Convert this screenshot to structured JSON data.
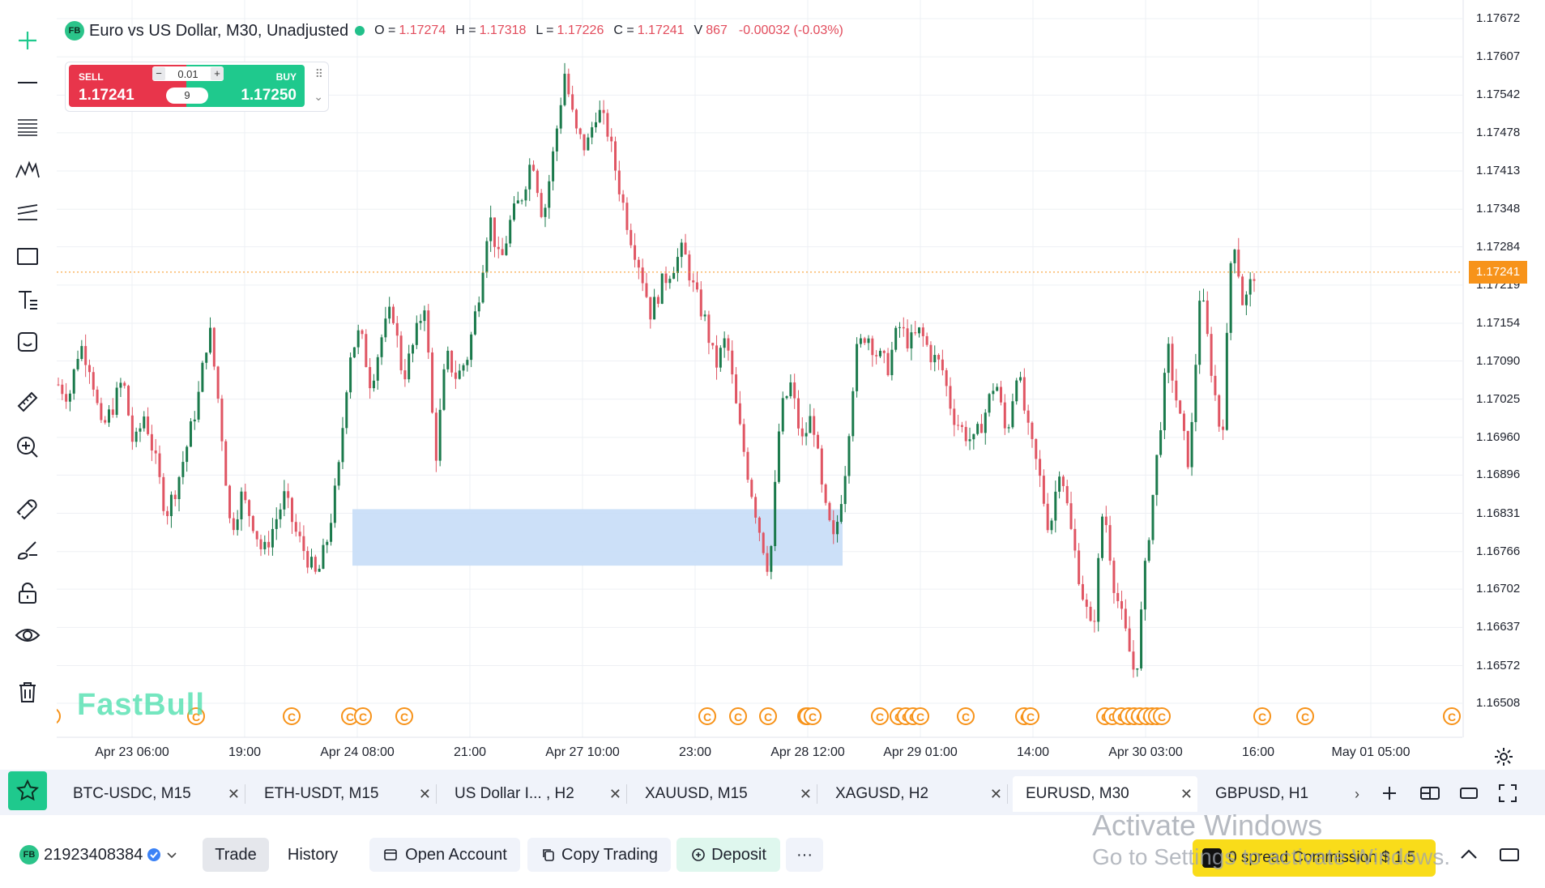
{
  "legend": {
    "badge": "FB",
    "symbol": "Euro vs US Dollar, M30, Unadjusted",
    "o_label": "O =",
    "o_value": "1.17274",
    "h_label": "H =",
    "h_value": "1.17318",
    "l_label": "L =",
    "l_value": "1.17226",
    "c_label": "C =",
    "c_value": "1.17241",
    "v_label": "V",
    "v_value": "867",
    "change": "-0.00032 (-0.03%)"
  },
  "trade_widget": {
    "sell_label": "SELL",
    "sell_price": "1.17241",
    "buy_label": "BUY",
    "buy_price": "1.17250",
    "quantity": "0.01",
    "minus": "−",
    "plus": "+",
    "spread": "9"
  },
  "toolbar": {
    "tools": [
      "crosshair-icon",
      "horizontal-line-icon",
      "fib-lines-icon",
      "pattern-icon",
      "parallel-channel-icon",
      "rectangle-icon",
      "text-icon",
      "emoji-icon",
      "ruler-icon",
      "zoom-in-icon",
      "magnet-icon",
      "brush-icon",
      "lock-icon",
      "eye-icon",
      "trash-icon"
    ]
  },
  "price_axis": [
    "1.17672",
    "1.17607",
    "1.17542",
    "1.17478",
    "1.17413",
    "1.17348",
    "1.17284",
    "1.17219",
    "1.17154",
    "1.17090",
    "1.17025",
    "1.16960",
    "1.16896",
    "1.16831",
    "1.16766",
    "1.16702",
    "1.16637",
    "1.16572",
    "1.16508"
  ],
  "current_price": "1.17241",
  "time_axis": [
    "Apr 23 06:00",
    "19:00",
    "Apr 24 08:00",
    "21:00",
    "Apr 27 10:00",
    "23:00",
    "Apr 28 12:00",
    "Apr 29 01:00",
    "14:00",
    "Apr 30 03:00",
    "16:00",
    "May 01 05:00"
  ],
  "watermark": "FastBull",
  "colors": {
    "up": "#1b7a4c",
    "down": "#e05563",
    "accent": "#1fc98d",
    "price_tag": "#f7931a",
    "zone": "#c6ddf7",
    "event": "#f7931a"
  },
  "chart_data": {
    "type": "candlestick",
    "symbol": "Euro vs US Dollar, M30, Unadjusted",
    "ylim": [
      1.16508,
      1.17672
    ],
    "current_price": 1.17241,
    "zone": {
      "low": 1.16742,
      "high": 1.16838
    },
    "event_markers": "C",
    "close_path": [
      1.1705,
      1.1703,
      1.1712,
      1.1708,
      1.1697,
      1.1701,
      1.1706,
      1.1694,
      1.17,
      1.1692,
      1.1683,
      1.1688,
      1.1695,
      1.1703,
      1.1715,
      1.17,
      1.168,
      1.1686,
      1.1682,
      1.1676,
      1.1681,
      1.1686,
      1.168,
      1.1676,
      1.1672,
      1.1679,
      1.169,
      1.171,
      1.1714,
      1.1705,
      1.1713,
      1.1718,
      1.1706,
      1.1712,
      1.1719,
      1.1692,
      1.171,
      1.1706,
      1.171,
      1.172,
      1.1734,
      1.1725,
      1.1733,
      1.1737,
      1.1744,
      1.1733,
      1.1745,
      1.1758,
      1.1748,
      1.1745,
      1.1752,
      1.1748,
      1.1739,
      1.1731,
      1.1725,
      1.1717,
      1.1722,
      1.1725,
      1.1728,
      1.1721,
      1.1716,
      1.1708,
      1.1713,
      1.17,
      1.169,
      1.1681,
      1.1673,
      1.17,
      1.1705,
      1.1695,
      1.17,
      1.1685,
      1.1678,
      1.169,
      1.171,
      1.1714,
      1.171,
      1.1708,
      1.1715,
      1.1712,
      1.1714,
      1.171,
      1.1708,
      1.17,
      1.1697,
      1.1695,
      1.17,
      1.1706,
      1.1696,
      1.1708,
      1.1697,
      1.169,
      1.168,
      1.1692,
      1.168,
      1.167,
      1.1662,
      1.1685,
      1.1671,
      1.1663,
      1.1655,
      1.1676,
      1.1693,
      1.1711,
      1.17,
      1.1691,
      1.1722,
      1.1708,
      1.1695,
      1.1732,
      1.1718,
      1.1724
    ]
  },
  "tabs": [
    {
      "label": "BTC-USDC, M15",
      "active": false
    },
    {
      "label": "ETH-USDT, M15",
      "active": false
    },
    {
      "label": "US Dollar I... , H2",
      "active": false
    },
    {
      "label": "XAUUSD, M15",
      "active": false
    },
    {
      "label": "XAGUSD, H2",
      "active": false
    },
    {
      "label": "EURUSD, M30",
      "active": true
    },
    {
      "label": "GBPUSD, H1",
      "active": false
    }
  ],
  "bottom": {
    "account_badge": "FB",
    "account_id": "21923408384",
    "trade": "Trade",
    "history": "History",
    "open_account": "Open Account",
    "copy_trading": "Copy Trading",
    "deposit": "Deposit",
    "more": "···",
    "promo": "0 spread Commission $ 1.5"
  },
  "activate_windows": {
    "title": "Activate Windows",
    "subtitle": "Go to Settings to activate Windows."
  }
}
